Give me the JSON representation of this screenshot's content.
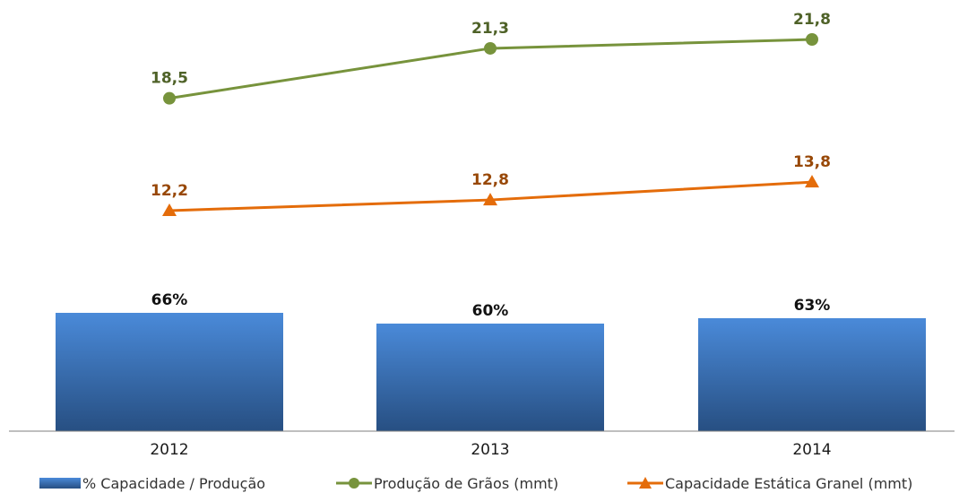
{
  "chart_data": {
    "type": "bar",
    "categories": [
      "2012",
      "2013",
      "2014"
    ],
    "series": [
      {
        "name": "% Capacidade / Produção",
        "kind": "bar",
        "values": [
          66,
          60,
          63
        ],
        "labels": [
          "66%",
          "60%",
          "63%"
        ],
        "color": "#3a6fb5"
      },
      {
        "name": "Produção de Grãos (mmt)",
        "kind": "line",
        "marker": "circle",
        "values": [
          18.5,
          21.3,
          21.8
        ],
        "labels": [
          "18,5",
          "21,3",
          "21,8"
        ],
        "color": "#77933c",
        "label_color": "#4f6228"
      },
      {
        "name": "Capacidade Estática Granel (mmt)",
        "kind": "line",
        "marker": "triangle",
        "values": [
          12.2,
          12.8,
          13.8
        ],
        "labels": [
          "12,2",
          "12,8",
          "13,8"
        ],
        "color": "#e46c0a",
        "label_color": "#984807"
      }
    ],
    "legend_position": "bottom",
    "grid": false
  }
}
